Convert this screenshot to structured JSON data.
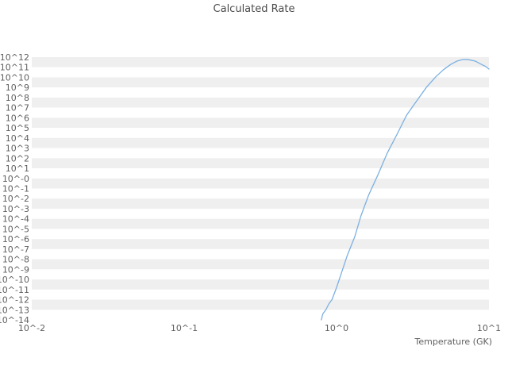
{
  "chart_data": {
    "type": "line",
    "title": "Calculated Rate",
    "xlabel": "Temperature (GK)",
    "ylabel": "",
    "legend": "none",
    "grid": "horizontal-bands-per-decade",
    "xlim_log10": [
      -2,
      1
    ],
    "ylim_log10": [
      -14,
      12
    ],
    "x_tick_labels": [
      "10^-2",
      "10^-1",
      "10^0",
      "10^1"
    ],
    "x_tick_log10": [
      -2,
      -1,
      0,
      1
    ],
    "y_tick_labels": [
      "10^12",
      "10^11",
      "10^10",
      "10^9",
      "10^8",
      "10^7",
      "10^6",
      "10^5",
      "10^4",
      "10^3",
      "10^2",
      "10^1",
      "10^-0",
      "10^-1",
      "10^-2",
      "10^-3",
      "10^-4",
      "10^-5",
      "10^-6",
      "10^-7",
      "10^-8",
      "10^-9",
      "10^-10",
      "10^-11",
      "10^-12",
      "10^-13",
      "10^-14"
    ],
    "y_tick_log10": [
      12,
      11,
      10,
      9,
      8,
      7,
      6,
      5,
      4,
      3,
      2,
      1,
      0,
      -1,
      -2,
      -3,
      -4,
      -5,
      -6,
      -7,
      -8,
      -9,
      -10,
      -11,
      -12,
      -13,
      -14
    ],
    "colors": {
      "line": "#7cb0e2",
      "band": "#efefef",
      "background": "#ffffff",
      "tick_text": "#5f5f5f",
      "title_text": "#4a4a4a"
    },
    "series": [
      {
        "name": "Calculated Rate",
        "points_log10": [
          [
            -0.1,
            -14.0
          ],
          [
            -0.09,
            -13.4
          ],
          [
            -0.07,
            -13.0
          ],
          [
            -0.05,
            -12.4
          ],
          [
            -0.03,
            -12.0
          ],
          [
            0.0,
            -10.8
          ],
          [
            0.03,
            -9.45
          ],
          [
            0.07,
            -7.64
          ],
          [
            0.12,
            -5.75
          ],
          [
            0.16,
            -3.71
          ],
          [
            0.21,
            -1.67
          ],
          [
            0.27,
            0.3
          ],
          [
            0.33,
            2.42
          ],
          [
            0.4,
            4.46
          ],
          [
            0.46,
            6.27
          ],
          [
            0.53,
            7.76
          ],
          [
            0.59,
            9.02
          ],
          [
            0.65,
            10.04
          ],
          [
            0.7,
            10.74
          ],
          [
            0.75,
            11.29
          ],
          [
            0.79,
            11.61
          ],
          [
            0.83,
            11.77
          ],
          [
            0.86,
            11.77
          ],
          [
            0.91,
            11.61
          ],
          [
            0.94,
            11.37
          ],
          [
            0.98,
            11.06
          ],
          [
            1.0,
            10.82
          ]
        ]
      }
    ]
  }
}
